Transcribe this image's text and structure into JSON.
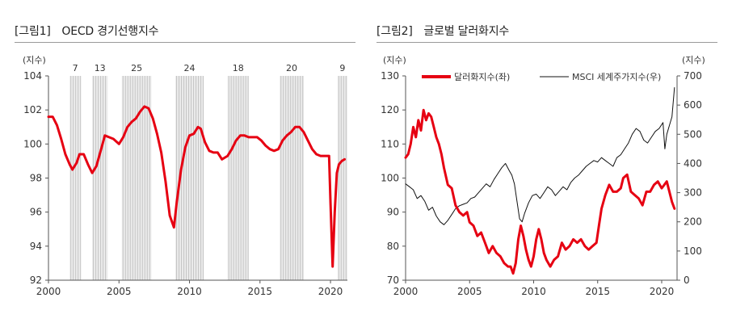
{
  "figures": [
    {
      "title": "[그림1]　OECD 경기선행지수"
    },
    {
      "title": "[그림2]　글로벌 달러화지수"
    }
  ],
  "chart_data": [
    {
      "type": "line",
      "title": "[그림1]　OECD 경기선행지수",
      "ylabel": "(지수)",
      "xlim": [
        2000,
        2021.2
      ],
      "ylim": [
        92,
        104
      ],
      "yticks": [
        92,
        94,
        96,
        98,
        100,
        102,
        104
      ],
      "xticks": [
        2000,
        2005,
        2010,
        2015,
        2020
      ],
      "grid": false,
      "shaded_periods": [
        {
          "start": 2001.5,
          "end": 2002.3,
          "label": "7"
        },
        {
          "start": 2003.1,
          "end": 2004.2,
          "label": "13"
        },
        {
          "start": 2005.2,
          "end": 2007.3,
          "label": "25"
        },
        {
          "start": 2009.0,
          "end": 2011.0,
          "label": "24"
        },
        {
          "start": 2012.7,
          "end": 2014.2,
          "label": "18"
        },
        {
          "start": 2016.4,
          "end": 2018.1,
          "label": "20"
        },
        {
          "start": 2020.5,
          "end": 2021.2,
          "label": "9"
        }
      ],
      "series": [
        {
          "color": "#e60012",
          "x": [
            2000.0,
            2000.3,
            2000.6,
            2000.9,
            2001.2,
            2001.5,
            2001.7,
            2002.0,
            2002.2,
            2002.5,
            2002.8,
            2003.1,
            2003.4,
            2003.7,
            2004.0,
            2004.3,
            2004.6,
            2005.0,
            2005.3,
            2005.6,
            2005.9,
            2006.2,
            2006.5,
            2006.8,
            2007.1,
            2007.4,
            2007.7,
            2008.0,
            2008.3,
            2008.6,
            2008.9,
            2009.1,
            2009.4,
            2009.7,
            2010.0,
            2010.3,
            2010.6,
            2010.8,
            2011.1,
            2011.4,
            2011.7,
            2012.0,
            2012.3,
            2012.7,
            2013.0,
            2013.3,
            2013.6,
            2013.9,
            2014.2,
            2014.5,
            2014.8,
            2015.1,
            2015.4,
            2015.7,
            2016.0,
            2016.3,
            2016.6,
            2016.9,
            2017.2,
            2017.5,
            2017.8,
            2018.1,
            2018.4,
            2018.7,
            2019.0,
            2019.3,
            2019.6,
            2019.9,
            2020.0,
            2020.15,
            2020.3,
            2020.45,
            2020.6,
            2020.8,
            2021.0
          ],
          "y": [
            101.6,
            101.6,
            101.1,
            100.3,
            99.4,
            98.8,
            98.5,
            98.9,
            99.4,
            99.4,
            98.8,
            98.3,
            98.7,
            99.6,
            100.5,
            100.4,
            100.3,
            100.0,
            100.4,
            101.0,
            101.3,
            101.5,
            101.9,
            102.2,
            102.1,
            101.5,
            100.6,
            99.5,
            97.8,
            95.8,
            95.1,
            96.6,
            98.5,
            99.8,
            100.5,
            100.6,
            101.0,
            100.9,
            100.1,
            99.6,
            99.5,
            99.5,
            99.1,
            99.3,
            99.7,
            100.2,
            100.5,
            100.5,
            100.4,
            100.4,
            100.4,
            100.2,
            99.9,
            99.7,
            99.6,
            99.7,
            100.2,
            100.5,
            100.7,
            101.0,
            101.0,
            100.7,
            100.2,
            99.7,
            99.4,
            99.3,
            99.3,
            99.3,
            96.5,
            92.8,
            96.0,
            98.3,
            98.8,
            99.0,
            99.1
          ]
        }
      ]
    },
    {
      "type": "line",
      "title": "[그림2]　글로벌 달러화지수",
      "ylabel": "(지수)",
      "y2label": "(지수)",
      "xlim": [
        2000,
        2021.2
      ],
      "ylim": [
        70,
        130
      ],
      "y2lim": [
        0,
        700
      ],
      "yticks": [
        70,
        80,
        90,
        100,
        110,
        120,
        130
      ],
      "y2ticks": [
        0,
        100,
        200,
        300,
        400,
        500,
        600,
        700
      ],
      "xticks": [
        2000,
        2005,
        2010,
        2015,
        2020
      ],
      "grid": false,
      "legend": "top-left",
      "series": [
        {
          "name": "달러화지수(좌)",
          "axis": "left",
          "color": "#e60012",
          "x": [
            2000.0,
            2000.2,
            2000.4,
            2000.6,
            2000.8,
            2001.0,
            2001.2,
            2001.4,
            2001.6,
            2001.8,
            2002.0,
            2002.2,
            2002.4,
            2002.6,
            2002.8,
            2003.0,
            2003.3,
            2003.6,
            2003.9,
            2004.2,
            2004.5,
            2004.8,
            2005.0,
            2005.3,
            2005.6,
            2005.9,
            2006.2,
            2006.5,
            2006.8,
            2007.1,
            2007.4,
            2007.7,
            2008.0,
            2008.2,
            2008.4,
            2008.6,
            2008.8,
            2009.0,
            2009.2,
            2009.4,
            2009.6,
            2009.8,
            2010.0,
            2010.2,
            2010.4,
            2010.6,
            2010.8,
            2011.0,
            2011.3,
            2011.6,
            2011.9,
            2012.2,
            2012.5,
            2012.8,
            2013.1,
            2013.4,
            2013.7,
            2014.0,
            2014.3,
            2014.6,
            2014.9,
            2015.1,
            2015.3,
            2015.6,
            2015.9,
            2016.2,
            2016.5,
            2016.8,
            2017.0,
            2017.3,
            2017.6,
            2017.9,
            2018.2,
            2018.5,
            2018.8,
            2019.1,
            2019.4,
            2019.7,
            2020.0,
            2020.2,
            2020.4,
            2020.6,
            2020.8,
            2021.0
          ],
          "y": [
            106,
            107,
            110,
            115,
            112,
            117,
            114,
            120,
            117,
            119,
            118,
            115,
            112,
            110,
            107,
            103,
            98,
            97,
            92,
            90,
            89,
            90,
            87,
            86,
            83,
            84,
            81,
            78,
            80,
            78,
            77,
            75,
            74,
            74,
            72,
            75,
            82,
            86,
            83,
            79,
            76,
            74,
            77,
            82,
            85,
            82,
            78,
            76,
            74,
            76,
            77,
            81,
            79,
            80,
            82,
            81,
            82,
            80,
            79,
            80,
            81,
            86,
            91,
            95,
            98,
            96,
            96,
            97,
            100,
            101,
            96,
            95,
            94,
            92,
            96,
            96,
            98,
            99,
            97,
            98,
            99,
            96,
            93,
            91
          ]
        },
        {
          "name": "MSCI 세계주가지수(우)",
          "axis": "right",
          "color": "#111111",
          "x": [
            2000.0,
            2000.3,
            2000.6,
            2000.9,
            2001.2,
            2001.5,
            2001.8,
            2002.1,
            2002.4,
            2002.7,
            2003.0,
            2003.3,
            2003.6,
            2003.9,
            2004.2,
            2004.5,
            2004.8,
            2005.1,
            2005.4,
            2005.7,
            2006.0,
            2006.3,
            2006.6,
            2006.9,
            2007.2,
            2007.5,
            2007.8,
            2008.1,
            2008.3,
            2008.5,
            2008.7,
            2008.9,
            2009.1,
            2009.3,
            2009.6,
            2009.9,
            2010.2,
            2010.5,
            2010.8,
            2011.1,
            2011.4,
            2011.7,
            2012.0,
            2012.3,
            2012.6,
            2012.9,
            2013.2,
            2013.5,
            2013.8,
            2014.1,
            2014.4,
            2014.7,
            2015.0,
            2015.3,
            2015.6,
            2015.9,
            2016.2,
            2016.5,
            2016.8,
            2017.1,
            2017.4,
            2017.7,
            2018.0,
            2018.3,
            2018.6,
            2018.9,
            2019.2,
            2019.5,
            2019.8,
            2020.1,
            2020.25,
            2020.4,
            2020.6,
            2020.8,
            2021.0
          ],
          "y": [
            330,
            320,
            310,
            280,
            290,
            270,
            240,
            250,
            220,
            200,
            190,
            205,
            225,
            245,
            255,
            260,
            265,
            280,
            285,
            300,
            315,
            330,
            320,
            345,
            365,
            385,
            400,
            375,
            360,
            330,
            270,
            210,
            200,
            230,
            265,
            290,
            295,
            280,
            300,
            320,
            310,
            290,
            305,
            320,
            310,
            335,
            350,
            360,
            375,
            390,
            400,
            410,
            405,
            420,
            410,
            400,
            390,
            420,
            430,
            450,
            470,
            500,
            520,
            510,
            480,
            470,
            490,
            510,
            520,
            540,
            450,
            500,
            530,
            560,
            660
          ]
        }
      ]
    }
  ]
}
